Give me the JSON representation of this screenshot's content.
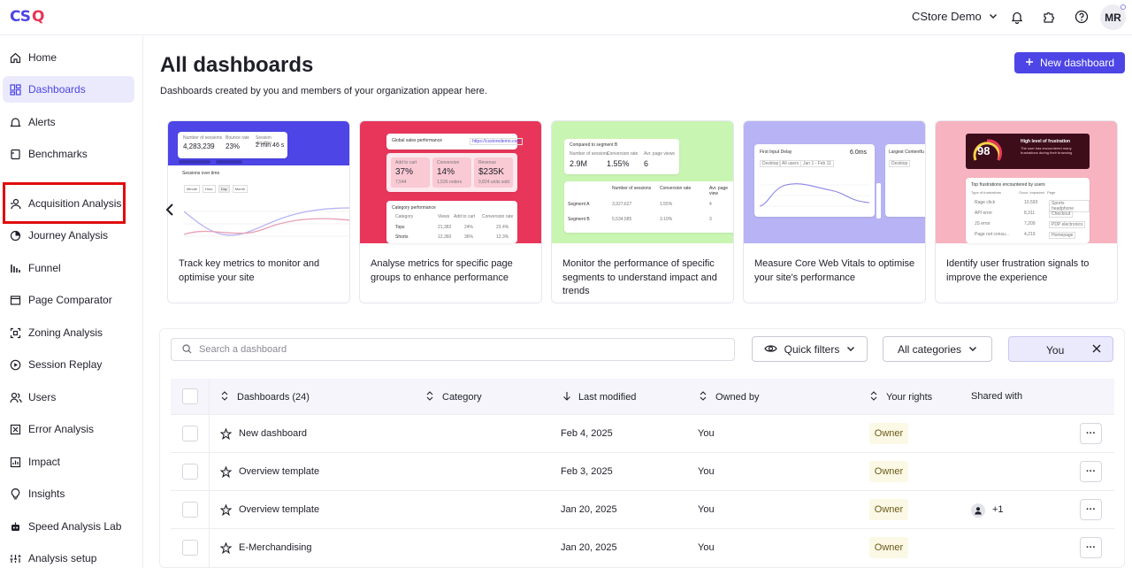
{
  "app": {
    "logo": "CSQ",
    "account": "CStore Demo",
    "user_initials": "MR"
  },
  "sidebar": {
    "items": [
      {
        "label": "Home",
        "icon": "home-icon"
      },
      {
        "label": "Dashboards",
        "icon": "grid-icon",
        "active": true
      },
      {
        "label": "Alerts",
        "icon": "bell-icon"
      },
      {
        "label": "Benchmarks",
        "icon": "benchmark-icon"
      },
      {
        "label": "Acquisition Analysis",
        "icon": "acquisition-icon",
        "highlighted": true
      },
      {
        "label": "Journey Analysis",
        "icon": "journey-icon"
      },
      {
        "label": "Funnel",
        "icon": "funnel-icon"
      },
      {
        "label": "Page Comparator",
        "icon": "page-comparator-icon"
      },
      {
        "label": "Zoning Analysis",
        "icon": "zoning-icon"
      },
      {
        "label": "Session Replay",
        "icon": "play-icon"
      },
      {
        "label": "Users",
        "icon": "users-icon"
      },
      {
        "label": "Error Analysis",
        "icon": "error-icon"
      },
      {
        "label": "Impact",
        "icon": "impact-icon"
      },
      {
        "label": "Insights",
        "icon": "bulb-icon"
      },
      {
        "label": "Speed Analysis Lab",
        "icon": "robot-icon"
      },
      {
        "label": "Analysis setup",
        "icon": "setup-icon"
      }
    ]
  },
  "header": {
    "title": "All dashboards",
    "subtitle": "Dashboards created by you and members of your organization appear here.",
    "new_button": "New dashboard"
  },
  "templates": [
    {
      "text": "Track key metrics to monitor and optimise your site",
      "color": "#4d45e6",
      "preview": {
        "m1t": "Number of sessions",
        "m1v": "4,283,239",
        "m2t": "Bounce rate",
        "m2v": "23%",
        "m3t": "Session duration",
        "m3v": "2 min 46 s",
        "chart_title": "Sessions over time",
        "tabs": [
          "Minute",
          "Hour",
          "Day",
          "Month"
        ]
      }
    },
    {
      "text": "Analyse metrics for specific page groups to enhance performance",
      "color": "#e8365a",
      "preview": {
        "title": "Global sales performance",
        "url": "https://csstoredemo.com",
        "k1t": "Add to cart",
        "k1v": "37%",
        "k1s": "7,544",
        "k2t": "Conversion",
        "k2v": "14%",
        "k2s": "1,526 orders",
        "k3t": "Revenue",
        "k3v": "$235K",
        "k3s": "9,824 units sold",
        "table_title": "Category performance",
        "cols": [
          "Category",
          "Views",
          "Add to cart",
          "Conversion rate"
        ],
        "rows": [
          [
            "Tops",
            "21,382",
            "24%",
            "23.4%"
          ],
          [
            "Shorts",
            "12,360",
            "36%",
            "12.3%"
          ]
        ]
      }
    },
    {
      "text": "Monitor the performance of specific segments to understand impact and trends",
      "color": "#c9f5b3",
      "preview": {
        "title": "Compared to segment B",
        "m1t": "Number of sessions",
        "m1v": "2.9M",
        "m2t": "Conversion rate",
        "m2v": "1.55%",
        "m3t": "Avr. page views",
        "m3v": "6",
        "cols": [
          "Number of sessions",
          "Conversion rate",
          "Avr. page view"
        ],
        "rows": [
          [
            "Segment A",
            "3,927,627",
            "1.55%",
            "4"
          ],
          [
            "Segment B",
            "5,534,585",
            "3.10%",
            "3"
          ]
        ]
      }
    },
    {
      "text": "Measure Core Web Vitals to optimise your site's performance",
      "color": "#b7b3f5",
      "preview": {
        "title": "First Input Delay",
        "value": "6.0ms",
        "side_title": "Largest Contentfu",
        "tags": [
          "Desktop",
          "All users",
          "Jan 1 - Feb 11"
        ],
        "side_tag": "Desktop"
      }
    },
    {
      "text": "Identify user frustration signals to improve the experience",
      "color": "#f7b3c0",
      "preview": {
        "score": "98",
        "headline": "High level of frustration",
        "desc": "The user has encountered many frustrations during their browsing",
        "list_title": "Top frustrations encountered by users",
        "cols": [
          "Type of frustrations",
          "Occur. impacted",
          "Page"
        ],
        "rows": [
          [
            "Rage click",
            "10,593",
            "Sports headphone"
          ],
          [
            "API error",
            "8,311",
            "Checkout"
          ],
          [
            "JS error",
            "7,209",
            "PDP electronics"
          ],
          [
            "Page not consu...",
            "4,219",
            "Homepage"
          ]
        ]
      }
    }
  ],
  "filters": {
    "search_placeholder": "Search a dashboard",
    "quick_filters": "Quick filters",
    "categories": "All categories",
    "owner_filter": "You"
  },
  "table": {
    "columns": [
      "Dashboards (24)",
      "Category",
      "Last modified",
      "Owned by",
      "Your rights",
      "Shared with"
    ],
    "rows": [
      {
        "name": "New dashboard",
        "category": "",
        "modified": "Feb 4, 2025",
        "owner": "You",
        "rights": "Owner",
        "shared": ""
      },
      {
        "name": "Overview template",
        "category": "",
        "modified": "Feb 3, 2025",
        "owner": "You",
        "rights": "Owner",
        "shared": ""
      },
      {
        "name": "Overview template",
        "category": "",
        "modified": "Jan 20, 2025",
        "owner": "You",
        "rights": "Owner",
        "shared": "+1"
      },
      {
        "name": "E-Merchandising",
        "category": "",
        "modified": "Jan 20, 2025",
        "owner": "You",
        "rights": "Owner",
        "shared": ""
      }
    ],
    "more_label": "···"
  },
  "colors": {
    "accent": "#4d45e6",
    "highlight": "#e00c0c",
    "active_bg": "#ebeafc",
    "owner_badge": "#fbf8e5"
  }
}
